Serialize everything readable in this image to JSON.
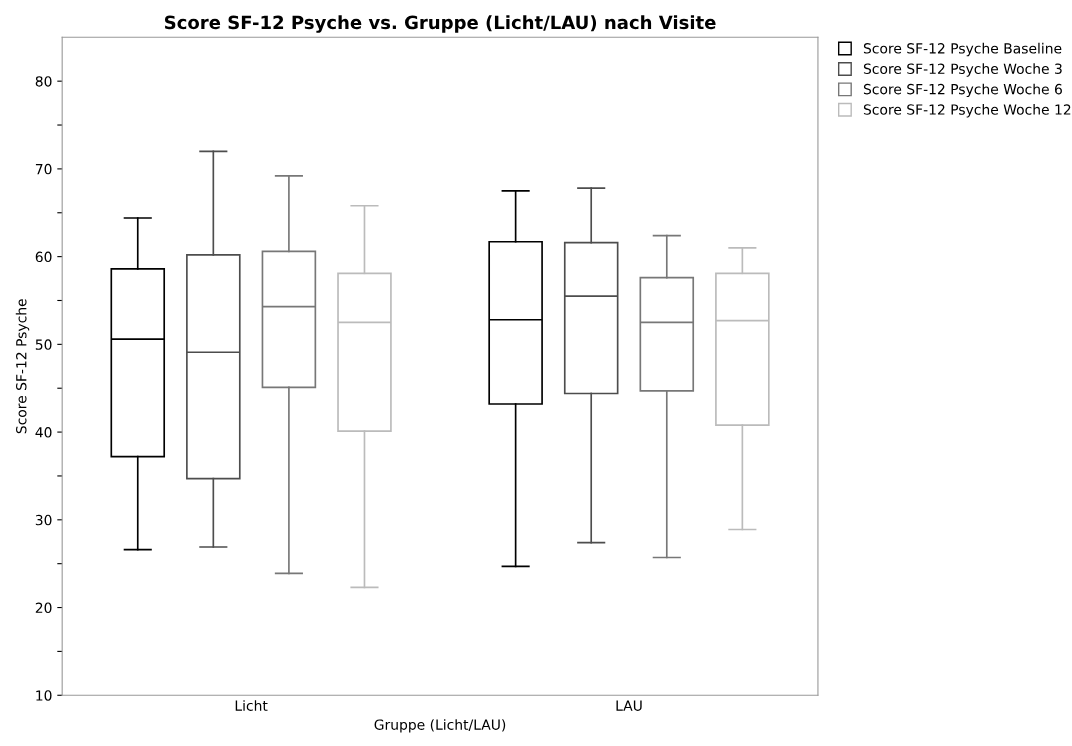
{
  "chart_data": {
    "type": "box",
    "title": "Score SF-12 Psyche vs. Gruppe (Licht/LAU) nach Visite",
    "xlabel": "Gruppe (Licht/LAU)",
    "ylabel": "Score SF-12 Psyche",
    "categories": [
      "Licht",
      "LAU"
    ],
    "ylim": [
      10,
      85
    ],
    "yticks": [
      10,
      {
        "value": 15,
        "label": null
      },
      20,
      {
        "value": 25,
        "label": null
      },
      30,
      {
        "value": 35,
        "label": null
      },
      40,
      {
        "value": 45,
        "label": null
      },
      50,
      {
        "value": 55,
        "label": null
      },
      60,
      {
        "value": 65,
        "label": null
      },
      70,
      {
        "value": 75,
        "label": null
      },
      80
    ],
    "grid": false,
    "legend": "top right",
    "series": [
      {
        "name": "Score SF-12 Psyche Baseline",
        "color": "#000000",
        "boxes": [
          {
            "low": 26.6,
            "q1": 37.2,
            "median": 50.6,
            "q3": 58.6,
            "high": 64.4
          },
          {
            "low": 24.7,
            "q1": 43.2,
            "median": 52.8,
            "q3": 61.7,
            "high": 67.5
          }
        ]
      },
      {
        "name": "Score SF-12 Psyche Woche 3",
        "color": "#4d4d4d",
        "boxes": [
          {
            "low": 26.9,
            "q1": 34.7,
            "median": 49.1,
            "q3": 60.2,
            "high": 72.0
          },
          {
            "low": 27.4,
            "q1": 44.4,
            "median": 55.5,
            "q3": 61.6,
            "high": 67.8
          }
        ]
      },
      {
        "name": "Score SF-12 Psyche Woche 6",
        "color": "#777777",
        "boxes": [
          {
            "low": 23.9,
            "q1": 45.1,
            "median": 54.3,
            "q3": 60.6,
            "high": 69.2
          },
          {
            "low": 25.7,
            "q1": 44.7,
            "median": 52.5,
            "q3": 57.6,
            "high": 62.4
          }
        ]
      },
      {
        "name": "Score SF-12 Psyche Woche 12",
        "color": "#bbbbbb",
        "boxes": [
          {
            "low": 22.3,
            "q1": 40.1,
            "median": 52.5,
            "q3": 58.1,
            "high": 65.8
          },
          {
            "low": 28.9,
            "q1": 40.8,
            "median": 52.7,
            "q3": 58.1,
            "high": 61.0
          }
        ]
      }
    ]
  }
}
